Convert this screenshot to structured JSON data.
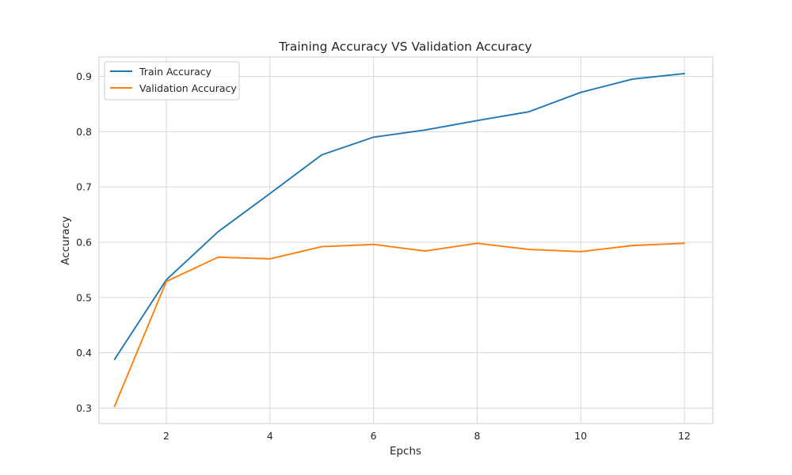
{
  "chart_data": {
    "type": "line",
    "title": "Training Accuracy VS Validation Accuracy",
    "xlabel": "Epchs",
    "ylabel": "Accuracy",
    "xlim": [
      0.7,
      12.55
    ],
    "ylim": [
      0.272,
      0.935
    ],
    "xticks": [
      2,
      4,
      6,
      8,
      10,
      12
    ],
    "xtick_labels": [
      "2",
      "4",
      "6",
      "8",
      "10",
      "12"
    ],
    "yticks": [
      0.3,
      0.4,
      0.5,
      0.6,
      0.7,
      0.8,
      0.9
    ],
    "ytick_labels": [
      "0.3",
      "0.4",
      "0.5",
      "0.6",
      "0.7",
      "0.8",
      "0.9"
    ],
    "grid": true,
    "legend_position": "top-left",
    "x": [
      1,
      2,
      3,
      4,
      5,
      6,
      7,
      8,
      9,
      10,
      11,
      12
    ],
    "series": [
      {
        "name": "Train Accuracy",
        "color": "#1f77b4",
        "values": [
          0.388,
          0.532,
          0.619,
          0.688,
          0.758,
          0.79,
          0.803,
          0.82,
          0.836,
          0.871,
          0.895,
          0.905
        ]
      },
      {
        "name": "Validation Accuracy",
        "color": "#ff7f0e",
        "values": [
          0.303,
          0.529,
          0.573,
          0.57,
          0.592,
          0.596,
          0.584,
          0.598,
          0.587,
          0.583,
          0.594,
          0.598
        ]
      }
    ]
  }
}
